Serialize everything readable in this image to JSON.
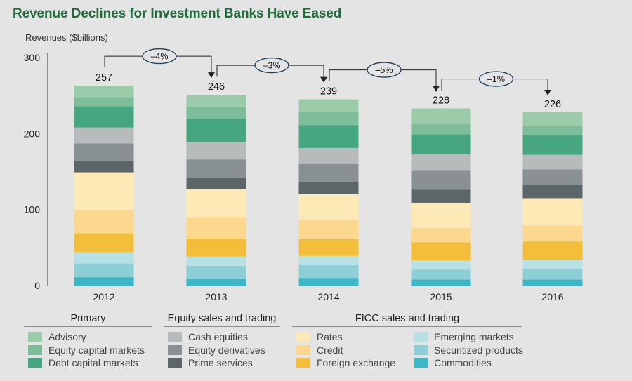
{
  "title": "Revenue Declines for Investment Banks Have Eased",
  "chart_data": {
    "type": "bar",
    "stacked": true,
    "title": "Revenue Declines for Investment Banks Have Eased",
    "ylabel": "Revenues ($billions)",
    "xlabel": "",
    "ylim": [
      0,
      300
    ],
    "yticks": [
      0,
      100,
      200,
      300
    ],
    "grid": false,
    "categories": [
      "2012",
      "2013",
      "2014",
      "2015",
      "2016"
    ],
    "totals": [
      257,
      246,
      239,
      228,
      226
    ],
    "changes": [
      "–4%",
      "–3%",
      "–5%",
      "–1%"
    ],
    "series": [
      {
        "name": "Commodities",
        "group": "FICC sales and trading",
        "color": "#3db6c5",
        "values": [
          11,
          9,
          10,
          8,
          8
        ]
      },
      {
        "name": "Securitized products",
        "group": "FICC sales and trading",
        "color": "#8dcfd6",
        "values": [
          18,
          17,
          17,
          13,
          14
        ]
      },
      {
        "name": "Emerging markets",
        "group": "FICC sales and trading",
        "color": "#b7e1e4",
        "values": [
          15,
          12,
          12,
          12,
          12
        ]
      },
      {
        "name": "Foreign exchange",
        "group": "FICC sales and trading",
        "color": "#f3bf3b",
        "values": [
          25,
          24,
          22,
          24,
          24
        ]
      },
      {
        "name": "Credit",
        "group": "FICC sales and trading",
        "color": "#fbd88e",
        "values": [
          30,
          28,
          26,
          19,
          21
        ]
      },
      {
        "name": "Rates",
        "group": "FICC sales and trading",
        "color": "#fde9b6",
        "values": [
          50,
          37,
          33,
          33,
          36
        ]
      },
      {
        "name": "Prime services",
        "group": "Equity sales and trading",
        "color": "#5c6568",
        "values": [
          15,
          15,
          16,
          17,
          17
        ]
      },
      {
        "name": "Equity derivatives",
        "group": "Equity sales and trading",
        "color": "#8a9194",
        "values": [
          23,
          24,
          24,
          26,
          21
        ]
      },
      {
        "name": "Cash equities",
        "group": "Equity sales and trading",
        "color": "#b7bbbc",
        "values": [
          21,
          23,
          21,
          21,
          19
        ]
      },
      {
        "name": "Debt capital markets",
        "group": "Primary",
        "color": "#46a67f",
        "values": [
          28,
          31,
          30,
          26,
          26
        ]
      },
      {
        "name": "Equity capital markets",
        "group": "Primary",
        "color": "#7dbd9a",
        "values": [
          12,
          15,
          17,
          14,
          12
        ]
      },
      {
        "name": "Advisory",
        "group": "Primary",
        "color": "#9ccbaa",
        "values": [
          15,
          16,
          17,
          20,
          18
        ]
      }
    ]
  },
  "legend": {
    "groups": [
      {
        "title": "Primary",
        "columns": [
          [
            "Advisory",
            "Equity capital markets",
            "Debt capital markets"
          ]
        ]
      },
      {
        "title": "Equity sales and trading",
        "columns": [
          [
            "Cash equities",
            "Equity derivatives",
            "Prime services"
          ]
        ]
      },
      {
        "title": "FICC sales and trading",
        "columns": [
          [
            "Rates",
            "Credit",
            "Foreign exchange"
          ],
          [
            "Emerging markets",
            "Securitized products",
            "Commodities"
          ]
        ]
      }
    ]
  }
}
